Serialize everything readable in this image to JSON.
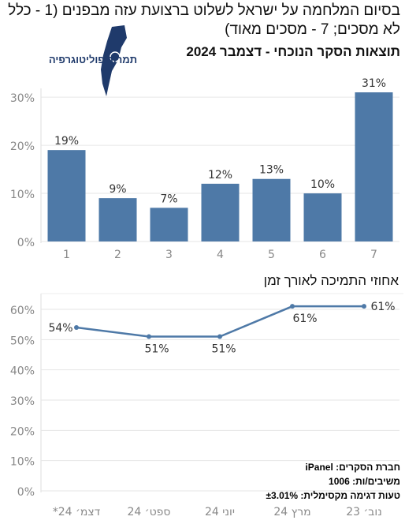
{
  "header": {
    "title": "בסיום המלחמה על ישראל לשלוט ברצועת עזה מבפנים (1 - כלל לא מסכים; 7 - מסכים מאוד)",
    "subtitle": "תוצאות הסקר הנוכחי - דצמבר 2024",
    "logo_text": "תמרור פוליטוגרפיה"
  },
  "colors": {
    "bar": "#4e79a7",
    "line": "#4e79a7",
    "axis_text": "#888888",
    "grid": "#e6e6e6"
  },
  "chart_data": [
    {
      "type": "bar",
      "categories": [
        "1",
        "2",
        "3",
        "4",
        "5",
        "6",
        "7"
      ],
      "values": [
        19,
        9,
        7,
        12,
        13,
        10,
        31
      ],
      "value_labels": [
        "19%",
        "9%",
        "7%",
        "12%",
        "13%",
        "10%",
        "31%"
      ],
      "yticks": [
        "0%",
        "10%",
        "20%",
        "30%"
      ],
      "ylim": [
        0,
        31
      ],
      "grid": true
    },
    {
      "type": "line",
      "title": "אחוזי התמיכה לאורך זמן",
      "categories": [
        "נוב׳ 23",
        "מרץ 24",
        "יוני 24",
        "ספט׳ 24",
        "דצמ׳ 24*"
      ],
      "values": [
        61,
        61,
        51,
        51,
        54
      ],
      "value_labels": [
        "61%",
        "61%",
        "51%",
        "51%",
        "54%"
      ],
      "yticks": [
        "0%",
        "10%",
        "20%",
        "30%",
        "40%",
        "50%",
        "60%"
      ],
      "ylim": [
        0,
        65
      ],
      "grid": true
    }
  ],
  "footer": {
    "company": "חברת הסקרים: iPanel",
    "respondents": "משיבים/ות: 1006",
    "margin_of_error": "טעות דגימה מקסימלית: ±3.01%"
  }
}
